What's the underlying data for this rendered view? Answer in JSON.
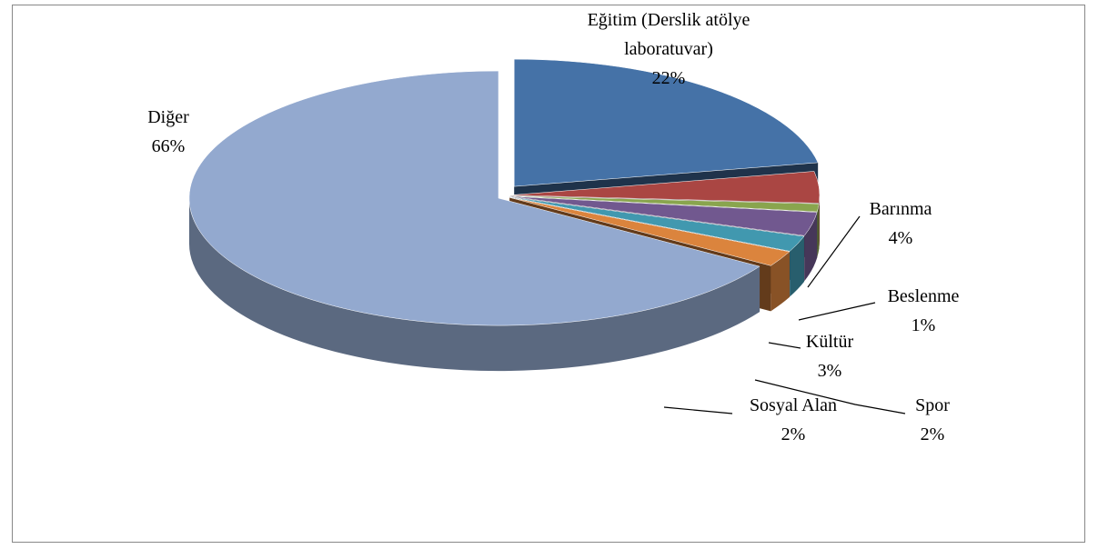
{
  "chart_data": {
    "type": "pie",
    "categories": [
      "Eğitim (Derslik atölye laboratuvar)",
      "Barınma",
      "Beslenme",
      "Kültür",
      "Spor",
      "Sosyal Alan",
      "Diğer"
    ],
    "values": [
      22,
      4,
      1,
      3,
      2,
      2,
      66
    ],
    "value_labels": [
      "22%",
      "4%",
      "1%",
      "3%",
      "2%",
      "2%",
      "66%"
    ],
    "colors": [
      "#4572A7",
      "#AA4643",
      "#89A54E",
      "#71588F",
      "#4198AF",
      "#DB843D",
      "#93A9CF"
    ]
  }
}
